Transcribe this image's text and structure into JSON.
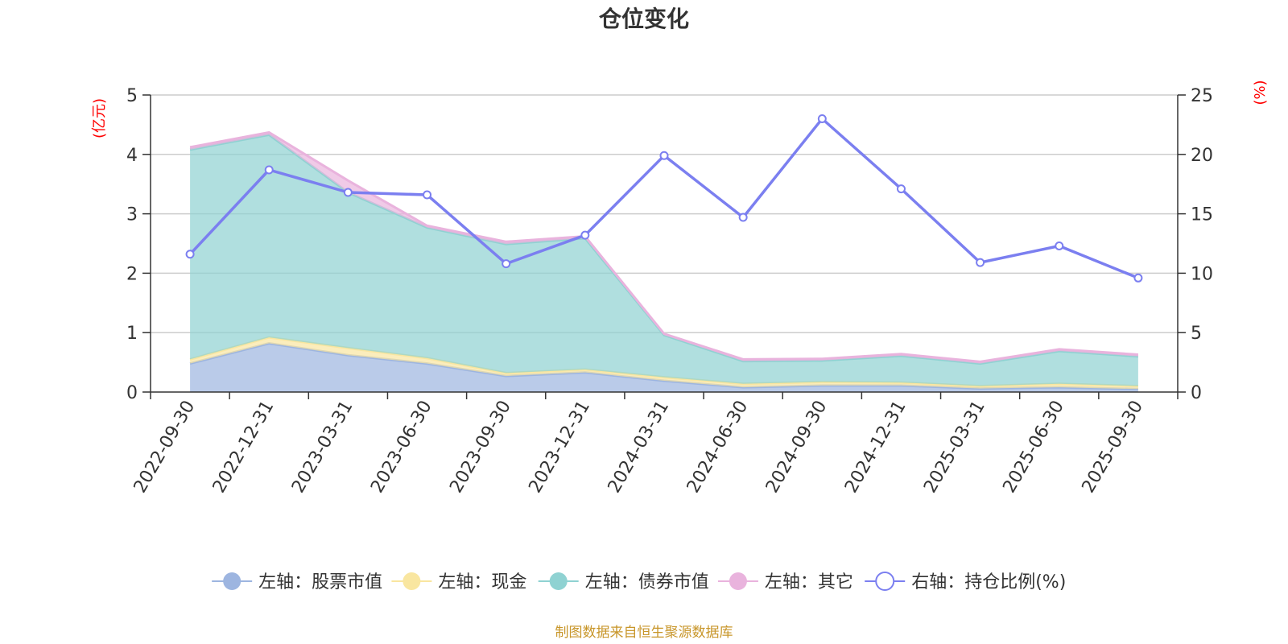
{
  "chart_data": {
    "type": "area",
    "title": "仓位变化",
    "left_unit": "(亿元)",
    "right_unit": "(%)",
    "categories": [
      "2022-09-30",
      "2022-12-31",
      "2023-03-31",
      "2023-06-30",
      "2023-09-30",
      "2023-12-31",
      "2024-03-31",
      "2024-06-30",
      "2024-09-30",
      "2024-12-31",
      "2025-03-31",
      "2025-06-30",
      "2025-09-30"
    ],
    "left_axis": {
      "min": 0,
      "max": 5,
      "ticks": [
        "0",
        "1",
        "2",
        "3",
        "4",
        "5"
      ]
    },
    "right_axis": {
      "min": 0,
      "max": 25,
      "ticks": [
        "0",
        "5",
        "10",
        "15",
        "20",
        "25"
      ]
    },
    "grid": true,
    "legend_position": "bottom",
    "stacked_series": [
      {
        "name": "左轴：股票市值",
        "color": "#9db5e0",
        "values": [
          0.48,
          0.82,
          0.62,
          0.48,
          0.27,
          0.33,
          0.19,
          0.08,
          0.11,
          0.11,
          0.06,
          0.08,
          0.05
        ]
      },
      {
        "name": "左轴：现金",
        "color": "#f9e6a0",
        "values": [
          0.07,
          0.1,
          0.12,
          0.09,
          0.05,
          0.05,
          0.06,
          0.06,
          0.06,
          0.05,
          0.04,
          0.06,
          0.05
        ]
      },
      {
        "name": "左轴：债券市值",
        "color": "#8fd2d2",
        "values": [
          3.53,
          3.41,
          2.62,
          2.2,
          2.17,
          2.21,
          0.71,
          0.38,
          0.36,
          0.45,
          0.38,
          0.55,
          0.5
        ]
      },
      {
        "name": "左轴：其它",
        "color": "#e9b3dd",
        "values": [
          0.04,
          0.04,
          0.2,
          0.03,
          0.04,
          0.03,
          0.02,
          0.03,
          0.03,
          0.03,
          0.03,
          0.03,
          0.03
        ]
      }
    ],
    "line_series": {
      "name": "右轴：持仓比例(%)",
      "color": "#7b7ff0",
      "values": [
        11.6,
        18.7,
        16.8,
        16.6,
        10.8,
        13.2,
        19.9,
        14.7,
        23.0,
        17.1,
        10.9,
        12.3,
        9.6
      ]
    },
    "source": "制图数据来自恒生聚源数据库"
  }
}
